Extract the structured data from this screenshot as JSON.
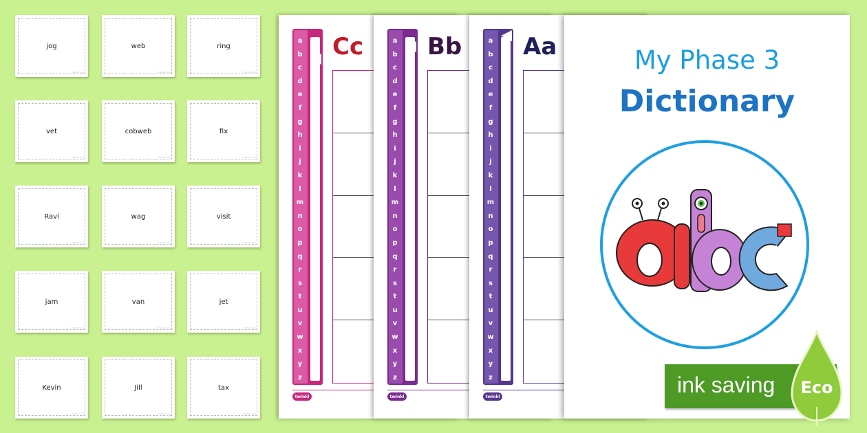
{
  "cards": [
    "jog",
    "web",
    "ring",
    "vet",
    "cobweb",
    "fix",
    "Ravi",
    "wag",
    "visit",
    "jam",
    "van",
    "jet",
    "Kevin",
    "Jill",
    "tax"
  ],
  "card_tiny": "twinkl.co.uk",
  "alphabet": [
    "a",
    "b",
    "c",
    "d",
    "e",
    "f",
    "g",
    "h",
    "i",
    "j",
    "k",
    "l",
    "m",
    "n",
    "o",
    "p",
    "q",
    "r",
    "s",
    "t",
    "u",
    "v",
    "w",
    "x",
    "y",
    "z"
  ],
  "sheets": [
    {
      "letter": "Cc",
      "color": "#c9267d",
      "light": "#db5aa6",
      "text": "#c31a27"
    },
    {
      "letter": "Bb",
      "color": "#7a2b8f",
      "light": "#9a4cad",
      "text": "#3a1446"
    },
    {
      "letter": "Aa",
      "color": "#55368f",
      "light": "#7556ad",
      "text": "#22205a"
    }
  ],
  "twinkl_logo": "twinkl",
  "cover": {
    "title_line1": "My Phase 3",
    "title_line2": "Dictionary"
  },
  "eco_badge": {
    "text": "ink saving",
    "label": "Eco",
    "color": "#4d9a25"
  }
}
